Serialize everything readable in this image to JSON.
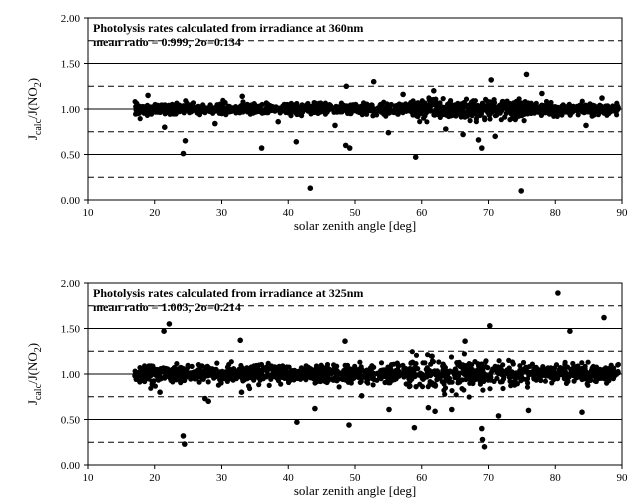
{
  "colors": {
    "points": "#000000",
    "frame": "#000000",
    "background": "#ffffff"
  },
  "chart_data": [
    {
      "type": "scatter",
      "annotation_line1": "Photolysis rates calculated from irradiance at 360nm",
      "annotation_line2": "mean ratio = 0.999, 2σ=0.134",
      "xlabel": "solar zenith angle [deg]",
      "ylabel_main": "J",
      "ylabel_sub": "calc",
      "ylabel_rest": "/J(NO",
      "ylabel_sub2": "2",
      "ylabel_close": ")",
      "xlim": [
        10,
        90
      ],
      "ylim": [
        0,
        2
      ],
      "xticks": [
        "10",
        "20",
        "30",
        "40",
        "50",
        "60",
        "70",
        "80",
        "90"
      ],
      "yticks": [
        "0.00",
        "0.50",
        "1.00",
        "1.50",
        "2.00"
      ],
      "solid_lines": [
        0.5,
        1.0,
        1.5
      ],
      "dashed_lines": [
        0.25,
        0.75,
        1.25,
        1.75
      ],
      "mean_ratio": 0.999,
      "two_sigma": 0.134,
      "x_range_data": [
        17,
        89.5
      ],
      "points": [
        [
          24.3,
          0.51
        ],
        [
          24.6,
          0.65
        ],
        [
          36.0,
          0.57
        ],
        [
          41.2,
          0.64
        ],
        [
          43.3,
          0.13
        ],
        [
          48.6,
          0.6
        ],
        [
          49.2,
          0.57
        ],
        [
          59.1,
          0.47
        ],
        [
          69.0,
          0.57
        ],
        [
          74.9,
          0.1
        ],
        [
          70.4,
          1.32
        ],
        [
          75.7,
          1.38
        ],
        [
          52.8,
          1.3
        ],
        [
          48.7,
          1.25
        ],
        [
          61.8,
          1.2
        ],
        [
          63.6,
          0.78
        ],
        [
          68.5,
          0.66
        ],
        [
          55.0,
          0.74
        ],
        [
          47.0,
          0.82
        ],
        [
          21.5,
          0.8
        ],
        [
          29.0,
          0.84
        ],
        [
          38.5,
          0.86
        ],
        [
          66.2,
          0.72
        ],
        [
          71.0,
          0.7
        ],
        [
          84.6,
          0.82
        ],
        [
          57.2,
          1.16
        ],
        [
          33.1,
          1.14
        ],
        [
          78.0,
          1.17
        ],
        [
          19.0,
          1.15
        ],
        [
          87.0,
          1.12
        ]
      ]
    },
    {
      "type": "scatter",
      "annotation_line1": "Photolysis rates calculated from irradiance at 325nm",
      "annotation_line2": "mean ratio = 1.003, 2σ=0.214",
      "xlabel": "solar zenith angle [deg]",
      "ylabel_main": "J",
      "ylabel_sub": "calc",
      "ylabel_rest": "/J(NO",
      "ylabel_sub2": "2",
      "ylabel_close": ")",
      "xlim": [
        10,
        90
      ],
      "ylim": [
        0,
        2
      ],
      "xticks": [
        "10",
        "20",
        "30",
        "40",
        "50",
        "60",
        "70",
        "80",
        "90"
      ],
      "yticks": [
        "0.00",
        "0.50",
        "1.00",
        "1.50",
        "2.00"
      ],
      "solid_lines": [
        0.5,
        1.0,
        1.5
      ],
      "dashed_lines": [
        0.25,
        0.75,
        1.25,
        1.75
      ],
      "mean_ratio": 1.003,
      "two_sigma": 0.214,
      "x_range_data": [
        17,
        89.5
      ],
      "points": [
        [
          80.4,
          1.89
        ],
        [
          22.2,
          1.55
        ],
        [
          21.4,
          1.47
        ],
        [
          70.2,
          1.53
        ],
        [
          87.3,
          1.62
        ],
        [
          82.2,
          1.47
        ],
        [
          32.8,
          1.37
        ],
        [
          48.5,
          1.36
        ],
        [
          66.5,
          1.36
        ],
        [
          24.3,
          0.32
        ],
        [
          24.5,
          0.23
        ],
        [
          41.3,
          0.47
        ],
        [
          49.1,
          0.44
        ],
        [
          58.9,
          0.41
        ],
        [
          69.1,
          0.28
        ],
        [
          69.4,
          0.2
        ],
        [
          69.0,
          0.4
        ],
        [
          64.5,
          0.61
        ],
        [
          62.0,
          0.59
        ],
        [
          76.0,
          0.6
        ],
        [
          44.0,
          0.62
        ],
        [
          55.1,
          0.61
        ],
        [
          28.0,
          0.7
        ],
        [
          27.5,
          0.73
        ],
        [
          33.0,
          0.8
        ],
        [
          71.5,
          0.54
        ],
        [
          84.0,
          0.58
        ],
        [
          51.0,
          0.76
        ],
        [
          20.8,
          0.8
        ],
        [
          61.0,
          0.63
        ]
      ]
    }
  ]
}
